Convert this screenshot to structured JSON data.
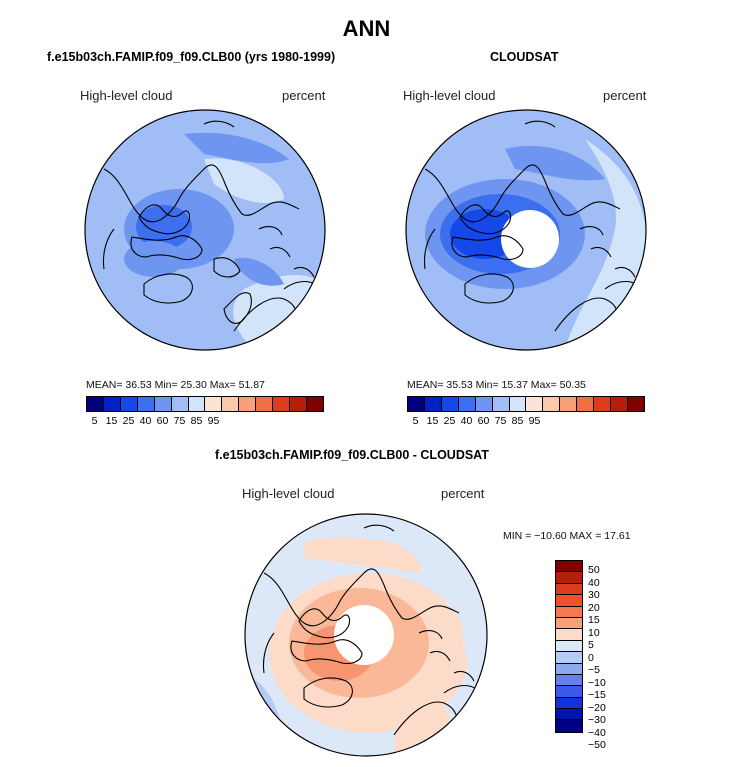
{
  "title": "ANN",
  "colors": {
    "abs_scale": [
      "#00007f",
      "#0020c8",
      "#1448e8",
      "#3c6ef0",
      "#6e96f0",
      "#a0bef5",
      "#d2e4fa",
      "#fbe4d5",
      "#fac8aa",
      "#f8a07a",
      "#f07046",
      "#dc3c1e",
      "#b41e0a",
      "#7f0000"
    ],
    "diff_scale": [
      "#7f0000",
      "#b41e0a",
      "#dc3c1e",
      "#f0502a",
      "#f57850",
      "#f8a07a",
      "#fcdcc8",
      "#dce8f8",
      "#b4ccf5",
      "#8caaf0",
      "#6482e6",
      "#3c5ae6",
      "#1432dc",
      "#0014b4",
      "#000082"
    ]
  },
  "panels": [
    {
      "title": "f.e15b03ch.FAMIP.f09_f09.CLB00 (yrs 1980-1999)",
      "left_label": "High-level cloud",
      "right_label": "percent",
      "stats": "MEAN=   36.53   Min=   25.30   Max=   51.87",
      "cbar_ticks": [
        "5",
        "15",
        "25",
        "40",
        "60",
        "75",
        "85",
        "95"
      ]
    },
    {
      "title": "CLOUDSAT",
      "left_label": "High-level cloud",
      "right_label": "percent",
      "stats": "MEAN=   35.53   Min=   15.37   Max=   50.35",
      "cbar_ticks": [
        "5",
        "15",
        "25",
        "40",
        "60",
        "75",
        "85",
        "95"
      ]
    },
    {
      "title": "f.e15b03ch.FAMIP.f09_f09.CLB00 - CLOUDSAT",
      "left_label": "High-level cloud",
      "right_label": "percent",
      "stats": "MIN = −10.60  MAX =   17.61",
      "cbar_ticks": [
        "50",
        "40",
        "30",
        "20",
        "15",
        "10",
        "5",
        "0",
        "−5",
        "−10",
        "−15",
        "−20",
        "−30",
        "−40",
        "−50"
      ]
    }
  ]
}
